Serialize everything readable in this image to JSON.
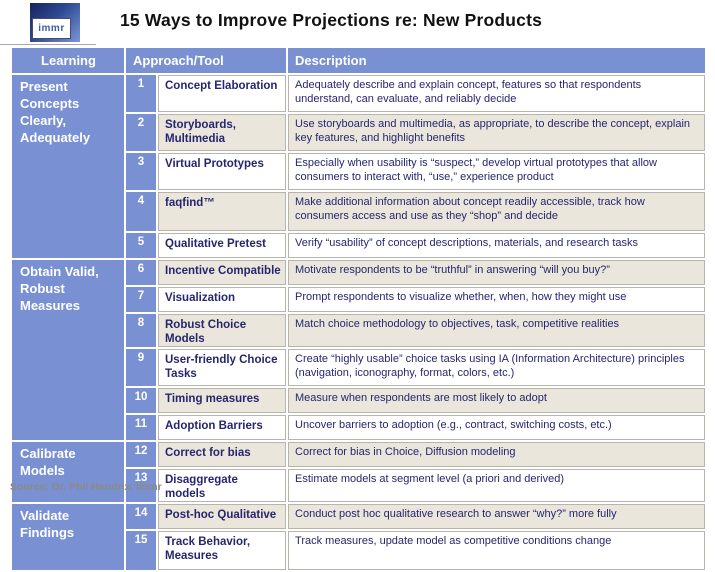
{
  "logo": {
    "text": "immr"
  },
  "title": "15 Ways to Improve Projections re: New Products",
  "table": {
    "headers": {
      "learning": "Learning",
      "approach": "Approach/Tool",
      "description": "Description"
    },
    "sections": [
      {
        "label": "Present Concepts Clearly, Adequately"
      },
      {
        "label": "Obtain Valid, Robust Measures"
      },
      {
        "label": "Calibrate Models"
      },
      {
        "label": "Validate Findings"
      }
    ],
    "rows": [
      {
        "num": "1",
        "approach": "Concept Elaboration",
        "description": "Adequately describe and explain concept, features so that respondents understand, can evaluate, and reliably decide"
      },
      {
        "num": "2",
        "approach": "Storyboards, Multimedia",
        "description": "Use storyboards and multimedia, as appropriate, to describe the concept, explain key features, and highlight benefits"
      },
      {
        "num": "3",
        "approach": "Virtual Prototypes",
        "description": "Especially when usability is “suspect,” develop virtual prototypes that allow consumers to interact with, “use,” experience product"
      },
      {
        "num": "4",
        "approach": "faqfind™",
        "description": "Make additional information about concept readily accessible, track how consumers access and use as they “shop” and decide"
      },
      {
        "num": "5",
        "approach": "Qualitative Pretest",
        "description": "Verify “usability” of concept descriptions, materials, and research tasks"
      },
      {
        "num": "6",
        "approach": "Incentive Compatible",
        "description": "Motivate respondents to be “truthful” in answering “will you buy?”"
      },
      {
        "num": "7",
        "approach": "Visualization",
        "description": "Prompt respondents to visualize whether, when, how they might use"
      },
      {
        "num": "8",
        "approach": "Robust Choice Models",
        "description": "Match choice methodology to objectives, task, competitive realities"
      },
      {
        "num": "9",
        "approach": "User-friendly Choice Tasks",
        "description": "Create “highly usable” choice tasks using IA (Information Architecture) principles (navigation, iconography, format, colors, etc.)"
      },
      {
        "num": "10",
        "approach": "Timing measures",
        "description": "Measure when respondents are most likely to adopt"
      },
      {
        "num": "11",
        "approach": "Adoption Barriers",
        "description": "Uncover barriers to adoption (e.g., contract, switching costs, etc.)"
      },
      {
        "num": "12",
        "approach": "Correct for bias",
        "description": "Correct for bias in Choice, Diffusion modeling"
      },
      {
        "num": "13",
        "approach": "Disaggregate models",
        "description": "Estimate models at segment level (a priori and derived)"
      },
      {
        "num": "14",
        "approach": "Post-hoc Qualitative",
        "description": "Conduct post hoc qualitative research to answer “why?” more fully"
      },
      {
        "num": "15",
        "approach": "Track Behavior, Measures",
        "description": "Track measures, update model as competitive conditions change"
      }
    ]
  },
  "footer": {
    "source": "Source: Dr. Phil Hendrix, immr"
  },
  "colors": {
    "cell_blue": "#7990d2",
    "row_white": "#ffffff",
    "row_beige": "#eae6db",
    "text_navy": "#26266f",
    "border_gray": "#b7b4ab",
    "footer_gray": "#8a8a8a"
  }
}
